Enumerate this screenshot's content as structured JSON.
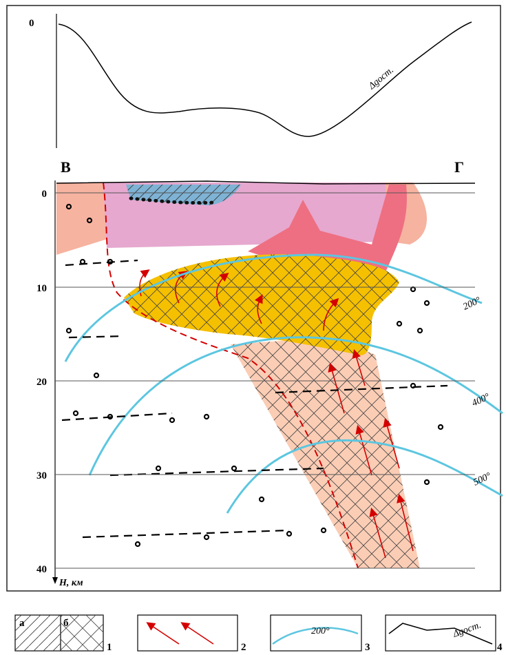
{
  "profile": {
    "zero_label": "0",
    "curve_label": "Δgост."
  },
  "section": {
    "left_label": "В",
    "right_label": "Г",
    "depth_ticks": [
      "0",
      "10",
      "20",
      "30",
      "40"
    ],
    "depth_axis_label": "H, км",
    "isotherms": [
      "200°",
      "400°",
      "500°"
    ]
  },
  "legend": [
    {
      "sublabels": [
        "а",
        "б"
      ],
      "number": "1"
    },
    {
      "number": "2"
    },
    {
      "sample": "200°",
      "number": "3"
    },
    {
      "sample": "Δgост.",
      "number": "4"
    }
  ]
}
